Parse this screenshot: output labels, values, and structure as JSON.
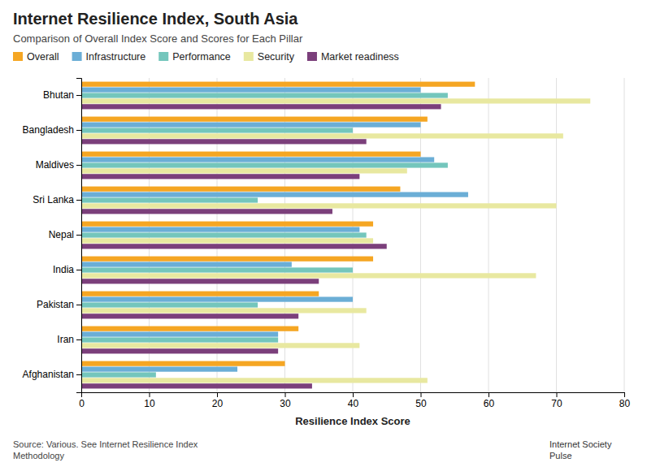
{
  "chart_data": {
    "type": "bar",
    "orientation": "horizontal",
    "title": "Internet Resilience Index, South Asia",
    "subtitle": "Comparison of Overall Index Score and Scores for Each Pillar",
    "xlabel": "Resilience Index Score",
    "annotations": [
      "Source: Various. See Internet Resilience Index\nMethodology",
      "Internet Society",
      "Pulse"
    ],
    "categories": [
      "Bhutan",
      "Bangladesh",
      "Maldives",
      "Sri Lanka",
      "Nepal",
      "India",
      "Pakistan",
      "Iran",
      "Afghanistan"
    ],
    "series": [
      {
        "name": "Overall",
        "color": "#F5A623",
        "values": [
          58,
          51,
          50,
          47,
          43,
          43,
          35,
          32,
          30
        ]
      },
      {
        "name": "Infrastructure",
        "color": "#6BAED6",
        "values": [
          50,
          50,
          52,
          57,
          41,
          31,
          40,
          29,
          23
        ]
      },
      {
        "name": "Performance",
        "color": "#74C6BC",
        "values": [
          54,
          40,
          54,
          26,
          42,
          40,
          26,
          29,
          11
        ]
      },
      {
        "name": "Security",
        "color": "#E8E8A0",
        "values": [
          75,
          71,
          48,
          70,
          43,
          67,
          42,
          41,
          51
        ]
      },
      {
        "name": "Market readiness",
        "color": "#7B3F7B",
        "values": [
          53,
          42,
          41,
          37,
          45,
          35,
          32,
          29,
          34
        ]
      }
    ],
    "xlim": [
      0,
      80
    ],
    "xticks": [
      0,
      10,
      20,
      30,
      40,
      50,
      60,
      70,
      80
    ],
    "grid": true,
    "legend": "top"
  }
}
